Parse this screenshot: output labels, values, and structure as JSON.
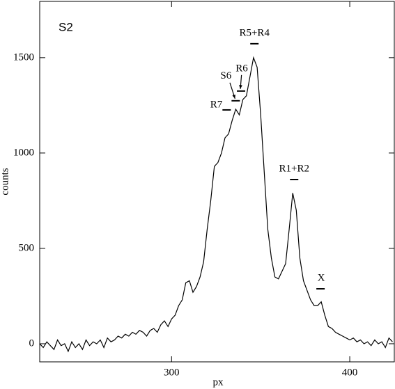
{
  "chart_data": {
    "type": "line",
    "title": "S2",
    "x_label": "px",
    "y_label": "counts",
    "xlim": [
      226,
      425
    ],
    "ylim": [
      -95,
      1795
    ],
    "xticks": [
      300,
      400
    ],
    "yticks": [
      0,
      500,
      1000,
      1500
    ],
    "color": "#000000",
    "x": [
      226,
      228,
      230,
      232,
      234,
      236,
      238,
      240,
      242,
      244,
      246,
      248,
      250,
      252,
      254,
      256,
      258,
      260,
      262,
      264,
      266,
      268,
      270,
      272,
      274,
      276,
      278,
      280,
      282,
      284,
      286,
      288,
      290,
      292,
      294,
      296,
      298,
      300,
      302,
      304,
      306,
      308,
      310,
      312,
      314,
      316,
      318,
      320,
      322,
      324,
      326,
      328,
      330,
      332,
      334,
      336,
      338,
      340,
      342,
      344,
      346,
      348,
      350,
      352,
      354,
      356,
      358,
      360,
      362,
      364,
      366,
      368,
      370,
      372,
      374,
      376,
      378,
      380,
      382,
      384,
      386,
      388,
      390,
      392,
      394,
      396,
      398,
      400,
      402,
      404,
      406,
      408,
      410,
      412,
      414,
      416,
      418,
      420,
      422,
      424
    ],
    "values": [
      0,
      -20,
      10,
      -10,
      -30,
      20,
      -10,
      0,
      -40,
      10,
      -20,
      0,
      -30,
      20,
      -10,
      10,
      0,
      20,
      -20,
      30,
      10,
      20,
      40,
      30,
      50,
      40,
      60,
      50,
      70,
      60,
      40,
      70,
      80,
      60,
      100,
      120,
      90,
      130,
      150,
      200,
      230,
      320,
      330,
      270,
      300,
      350,
      430,
      600,
      750,
      930,
      950,
      1000,
      1080,
      1100,
      1170,
      1230,
      1200,
      1280,
      1300,
      1400,
      1500,
      1450,
      1200,
      900,
      600,
      450,
      350,
      340,
      380,
      420,
      600,
      790,
      700,
      450,
      330,
      280,
      230,
      200,
      200,
      220,
      150,
      90,
      80,
      60,
      50,
      40,
      30,
      20,
      30,
      10,
      20,
      0,
      10,
      -10,
      20,
      0,
      10,
      -20,
      30,
      10
    ],
    "annotations": [
      {
        "text": "R5+R4",
        "x": 346.5,
        "y": 1573
      },
      {
        "text": "R7",
        "x": 330.9,
        "y": 1226
      },
      {
        "text": "S6",
        "x": 336,
        "y": 1274
      },
      {
        "text": "R6",
        "x": 339,
        "y": 1325
      },
      {
        "text": "R1+R2",
        "x": 368.8,
        "y": 861
      },
      {
        "text": "X",
        "x": 383.6,
        "y": 288
      }
    ]
  }
}
